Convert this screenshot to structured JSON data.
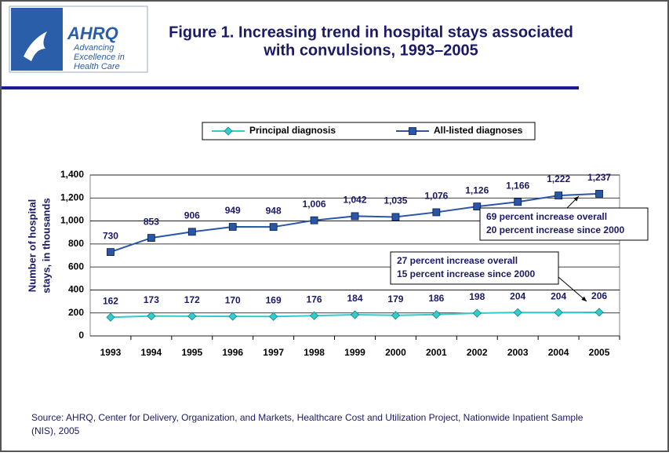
{
  "logo": {
    "name": "AHRQ",
    "lines": [
      "Advancing",
      "Excellence in",
      "Health Care"
    ]
  },
  "chart_data": {
    "type": "line",
    "title": [
      "Figure 1. Increasing trend in hospital stays associated",
      "with convulsions, 1993–2005"
    ],
    "y_label": [
      "Number of hospital",
      "stays, in thousands"
    ],
    "categories": [
      "1993",
      "1994",
      "1995",
      "1996",
      "1997",
      "1998",
      "1999",
      "2000",
      "2001",
      "2002",
      "2003",
      "2004",
      "2005"
    ],
    "series": [
      {
        "name": "Principal diagnosis",
        "color": "#33cccc",
        "marker": "diamond",
        "values": [
          162,
          173,
          172,
          170,
          169,
          176,
          184,
          179,
          186,
          198,
          204,
          204,
          206
        ]
      },
      {
        "name": "All-listed diagnoses",
        "color": "#2a56a6",
        "marker": "square",
        "values": [
          730,
          853,
          906,
          949,
          948,
          1006,
          1042,
          1035,
          1076,
          1126,
          1166,
          1222,
          1237
        ],
        "value_labels": [
          "730",
          "853",
          "906",
          "949",
          "948",
          "1,006",
          "1,042",
          "1,035",
          "1,076",
          "1,126",
          "1,166",
          "1,222",
          "1,237"
        ]
      }
    ],
    "ylim": [
      0,
      1400
    ],
    "yticks": [
      0,
      200,
      400,
      600,
      800,
      {
        "value": 1000,
        "label": "1,000"
      },
      {
        "value": 1200,
        "label": "1,200"
      },
      {
        "value": 1400,
        "label": "1,400"
      }
    ],
    "grid": true,
    "legend": "top",
    "annotations": [
      [
        "69 percent increase overall",
        "20 percent increase since 2000"
      ],
      [
        "27 percent increase overall",
        "15 percent increase since 2000"
      ]
    ],
    "source": [
      "Source: AHRQ, Center for Delivery, Organization, and Markets, Healthcare Cost and Utilization Project, Nationwide Inpatient Sample",
      "(NIS), 2005"
    ]
  }
}
